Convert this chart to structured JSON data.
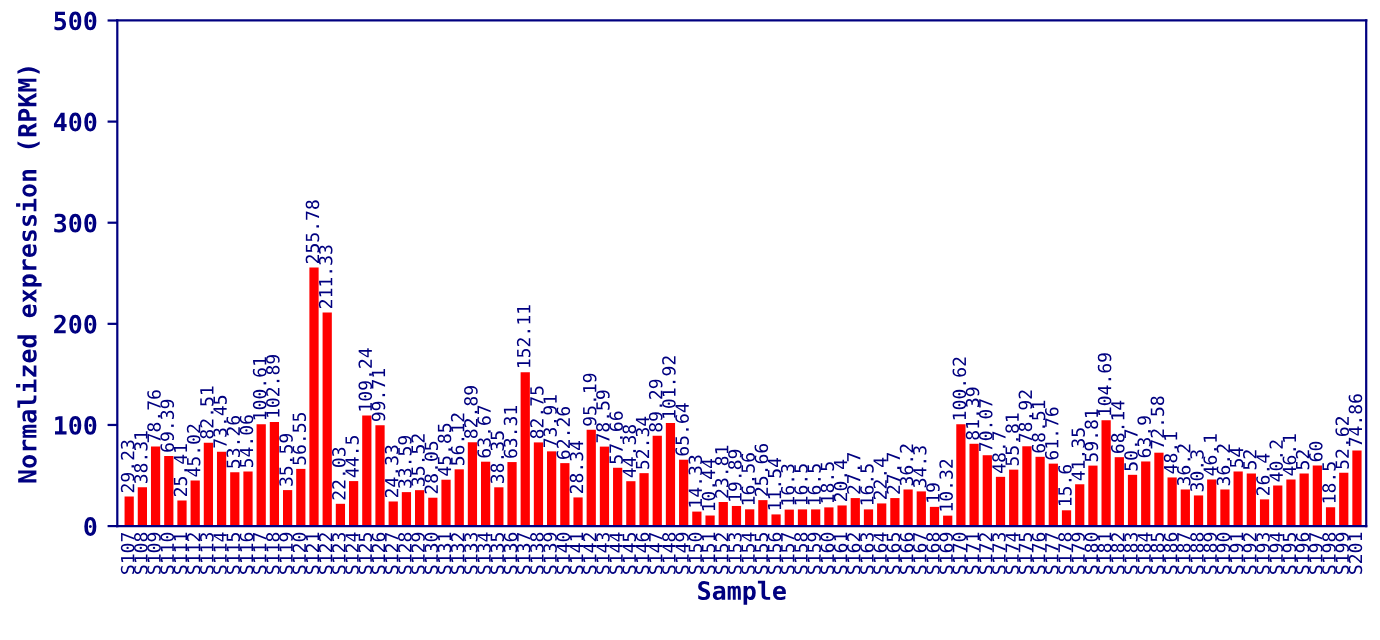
{
  "chart_data": {
    "type": "bar",
    "xlabel": "Sample",
    "ylabel": "Normalized expression (RPKM)",
    "categories": [
      "S107",
      "S108",
      "S109",
      "S110",
      "S111",
      "S112",
      "S113",
      "S114",
      "S115",
      "S116",
      "S117",
      "S118",
      "S119",
      "S120",
      "S121",
      "S122",
      "S123",
      "S124",
      "S125",
      "S126",
      "S127",
      "S128",
      "S129",
      "S130",
      "S131",
      "S132",
      "S133",
      "S134",
      "S135",
      "S136",
      "S137",
      "S138",
      "S139",
      "S140",
      "S141",
      "S142",
      "S143",
      "S144",
      "S145",
      "S146",
      "S147",
      "S148",
      "S149",
      "S150",
      "S151",
      "S152",
      "S153",
      "S154",
      "S155",
      "S156",
      "S157",
      "S158",
      "S159",
      "S160",
      "S161",
      "S162",
      "S163",
      "S164",
      "S165",
      "S166",
      "S167",
      "S168",
      "S169",
      "S170",
      "S171",
      "S172",
      "S173",
      "S174",
      "S175",
      "S176",
      "S177",
      "S178",
      "S179",
      "S180",
      "S181",
      "S182",
      "S183",
      "S184",
      "S185",
      "S186",
      "S187",
      "S188",
      "S189",
      "S190",
      "S191",
      "S192",
      "S193",
      "S194",
      "S195",
      "S196",
      "S197",
      "S198",
      "S199",
      "S201"
    ],
    "values": [
      29.23,
      38.31,
      78.76,
      69.39,
      25.41,
      45.02,
      82.51,
      73.45,
      53.26,
      54.06,
      100.61,
      102.89,
      35.59,
      56.55,
      255.78,
      211.33,
      22.03,
      44.5,
      109.24,
      99.71,
      24.33,
      33.59,
      35.52,
      28.05,
      45.85,
      56.12,
      82.89,
      63.67,
      38.35,
      63.31,
      152.11,
      82.75,
      73.91,
      62.26,
      28.34,
      95.19,
      78.59,
      57.66,
      44.38,
      52.34,
      89.29,
      101.92,
      65.64,
      14.33,
      10.44,
      23.81,
      19.89,
      16.56,
      25.66,
      11.54,
      16.3,
      16.5,
      16.5,
      18.5,
      20.4,
      27.7,
      16.5,
      22.4,
      27.7,
      36.2,
      34.3,
      19,
      10.32,
      100.62,
      81.39,
      70.07,
      48.7,
      55.81,
      78.92,
      68.51,
      61.76,
      15.6,
      41.35,
      59.81,
      104.69,
      68.14,
      50.7,
      63.9,
      72.58,
      48.1,
      36.2,
      30.3,
      46.1,
      36.2,
      54,
      52,
      26.4,
      40.2,
      46.1,
      52,
      60,
      18.5,
      52.62,
      74.86
    ],
    "color": "#ff0000",
    "ylim": [
      0,
      500
    ],
    "yticks": [
      0,
      100,
      200,
      300,
      400,
      500
    ],
    "grid": false,
    "data_labels": true
  }
}
